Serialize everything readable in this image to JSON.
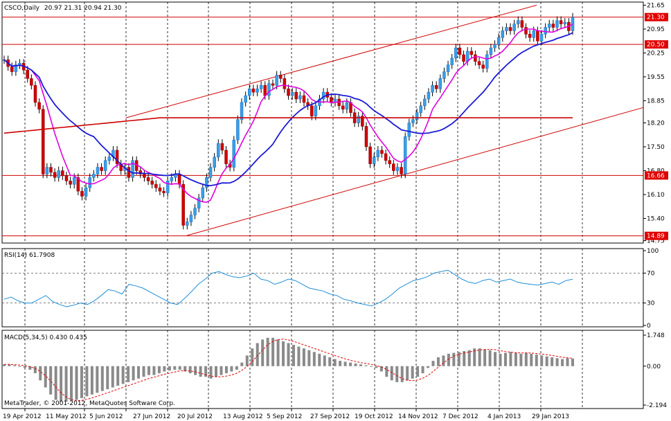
{
  "chart_data": {
    "type": "candlestick",
    "symbol": "CSCO,Daily",
    "ohlc": "20.97 21.31 20.94 21.30",
    "price_ticks": [
      "21.65",
      "20.95",
      "20.25",
      "19.55",
      "18.85",
      "18.20",
      "17.50",
      "16.80",
      "16.10",
      "15.40",
      "14.75"
    ],
    "price_range": [
      14.7,
      21.7
    ],
    "price_labels": [
      {
        "text": "21.30",
        "value": 21.3
      },
      {
        "text": "20.50",
        "value": 20.5
      },
      {
        "text": "16.66",
        "value": 16.66
      },
      {
        "text": "14.89",
        "value": 14.89
      }
    ],
    "x_ticks": [
      "19 Apr 2012",
      "11 May 2012",
      "5 Jun 2012",
      "27 Jun 2012",
      "20 Jul 2012",
      "13 Aug 2012",
      "5 Sep 2012",
      "27 Sep 2012",
      "19 Oct 2012",
      "14 Nov 2012",
      "7 Dec 2012",
      "4 Jan 2013",
      "29 Jan 2013"
    ],
    "closes": [
      20.05,
      19.85,
      19.7,
      19.9,
      19.95,
      19.75,
      19.5,
      19.3,
      18.8,
      18.6,
      16.7,
      16.9,
      16.75,
      16.6,
      16.8,
      16.65,
      16.5,
      16.4,
      16.6,
      16.2,
      16.05,
      16.3,
      16.6,
      16.7,
      16.9,
      16.8,
      17.1,
      17.2,
      17.4,
      17.0,
      16.8,
      16.9,
      16.6,
      17.1,
      16.8,
      16.7,
      16.6,
      16.5,
      16.4,
      16.3,
      16.2,
      16.15,
      16.5,
      16.6,
      16.7,
      16.4,
      15.2,
      15.3,
      15.5,
      15.7,
      16.0,
      16.3,
      16.6,
      16.9,
      17.2,
      17.6,
      17.4,
      17.0,
      16.9,
      17.7,
      18.3,
      18.8,
      19.0,
      19.2,
      19.1,
      19.2,
      19.3,
      19.0,
      19.35,
      19.3,
      19.6,
      19.5,
      19.2,
      19.0,
      19.1,
      18.9,
      19.0,
      18.8,
      18.7,
      18.4,
      18.7,
      18.9,
      19.1,
      18.95,
      18.8,
      18.9,
      18.7,
      18.6,
      18.8,
      18.5,
      18.2,
      18.4,
      18.1,
      17.5,
      17.0,
      17.2,
      17.4,
      17.3,
      17.1,
      17.0,
      16.8,
      16.9,
      16.7,
      17.8,
      18.2,
      18.3,
      18.5,
      18.7,
      18.9,
      19.1,
      19.3,
      19.2,
      19.5,
      19.7,
      19.9,
      20.1,
      20.4,
      20.2,
      20.0,
      20.3,
      20.2,
      20.0,
      19.9,
      19.8,
      20.2,
      20.4,
      20.5,
      20.7,
      20.9,
      21.0,
      20.9,
      21.1,
      21.2,
      21.0,
      20.8,
      20.7,
      20.9,
      20.6,
      20.8,
      21.0,
      21.1,
      21.0,
      21.2,
      21.1,
      21.15,
      20.9,
      21.3
    ],
    "indicators": {
      "ma_short": {
        "color": "#e000e0"
      },
      "ma_long": {
        "color": "#1a1ad6"
      },
      "ma_200": {
        "color": "#cc0000"
      }
    },
    "rsi": {
      "label": "RSI(14) 61.7908",
      "ticks": [
        "100",
        "70",
        "30",
        "0"
      ],
      "values": [
        35,
        38,
        33,
        30,
        30,
        35,
        40,
        32,
        28,
        25,
        27,
        30,
        28,
        33,
        40,
        48,
        46,
        42,
        55,
        53,
        50,
        45,
        40,
        35,
        30,
        28,
        36,
        45,
        55,
        62,
        70,
        72,
        68,
        65,
        64,
        66,
        70,
        62,
        60,
        55,
        58,
        62,
        60,
        55,
        50,
        48,
        46,
        42,
        40,
        35,
        33,
        30,
        28,
        26,
        30,
        35,
        42,
        50,
        55,
        60,
        62,
        65,
        70,
        72,
        74,
        68,
        62,
        58,
        56,
        60,
        62,
        58,
        60,
        62,
        58,
        56,
        55,
        54,
        56,
        58,
        55,
        60,
        61.8
      ]
    },
    "macd": {
      "label": "MACD(5,34,5) 0.430 0.435",
      "ticks": [
        "1.748",
        "0.00",
        "-2.194"
      ],
      "range": [
        -2.194,
        1.748
      ],
      "hist": [
        0.1,
        0.1,
        0.05,
        0,
        -0.1,
        -0.2,
        -0.4,
        -0.8,
        -1.2,
        -1.6,
        -1.9,
        -2.0,
        -2.0,
        -1.95,
        -1.9,
        -1.8,
        -1.7,
        -1.6,
        -1.5,
        -1.4,
        -1.3,
        -1.2,
        -1.1,
        -1.0,
        -0.9,
        -0.8,
        -0.7,
        -0.6,
        -0.5,
        -0.5,
        -0.4,
        -0.3,
        -0.25,
        -0.2,
        -0.2,
        -0.3,
        -0.4,
        -0.5,
        -0.6,
        -0.6,
        -0.7,
        -0.6,
        -0.5,
        -0.4,
        -0.3,
        -0.2,
        0.2,
        0.6,
        1.0,
        1.3,
        1.5,
        1.6,
        1.6,
        1.5,
        1.4,
        1.3,
        1.2,
        1.1,
        1.0,
        0.9,
        0.8,
        0.7,
        0.6,
        0.5,
        0.4,
        0.3,
        0.25,
        0.2,
        0.15,
        0.1,
        0.05,
        0,
        -0.1,
        -0.3,
        -0.6,
        -0.8,
        -0.9,
        -0.9,
        -0.8,
        -0.7,
        -0.6,
        -0.4,
        -0.1,
        0.3,
        0.5,
        0.6,
        0.7,
        0.75,
        0.8,
        0.85,
        0.9,
        1.0,
        1.0,
        0.95,
        0.9,
        0.8,
        0.7,
        0.75,
        0.8,
        0.75,
        0.7,
        0.75,
        0.7,
        0.65,
        0.6,
        0.55,
        0.5,
        0.45,
        0.4,
        0.45,
        0.43
      ]
    },
    "copyright": "MetaTrader, © 2001-2012, MetaQuotes Software Corp."
  }
}
